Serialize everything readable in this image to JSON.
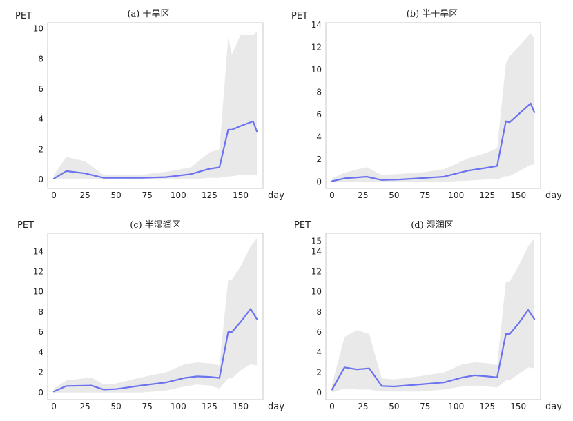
{
  "chart_data": [
    {
      "type": "line",
      "title": "(a) 干旱区",
      "ylabel": "PET",
      "xlabel": "day",
      "xlim": [
        -5,
        168
      ],
      "ylim": [
        -0.6,
        10.4
      ],
      "xticks": [
        "0",
        "25",
        "50",
        "75",
        "100",
        "125",
        "150"
      ],
      "yticks": [
        "0",
        "2",
        "4",
        "6",
        "8",
        "10"
      ],
      "colors": {
        "line": "#6b72f0",
        "band": "#e9e9e9"
      },
      "series": [
        {
          "x": [
            0,
            10,
            25,
            40,
            50,
            70,
            90,
            110,
            125,
            133,
            140,
            143,
            150,
            160,
            163
          ],
          "mean": [
            0.05,
            0.55,
            0.4,
            0.1,
            0.1,
            0.1,
            0.15,
            0.35,
            0.7,
            0.8,
            3.3,
            3.3,
            3.55,
            3.85,
            3.2
          ],
          "lower": [
            0,
            0,
            0,
            0,
            0,
            0,
            0,
            0,
            0.1,
            0.1,
            0.2,
            0.2,
            0.3,
            0.3,
            0.3
          ],
          "upper": [
            0.3,
            1.5,
            1.2,
            0.3,
            0.3,
            0.3,
            0.5,
            0.8,
            1.8,
            2.0,
            9.4,
            8.3,
            9.6,
            9.6,
            9.8
          ]
        }
      ]
    },
    {
      "type": "line",
      "title": "(b) 半干旱区",
      "ylabel": "PET",
      "xlabel": "day",
      "xlim": [
        -5,
        168
      ],
      "ylim": [
        -0.6,
        14.2
      ],
      "xticks": [
        "0",
        "25",
        "50",
        "75",
        "100",
        "125",
        "150"
      ],
      "yticks": [
        "0",
        "2",
        "4",
        "6",
        "8",
        "10",
        "12",
        "14"
      ],
      "colors": {
        "line": "#6b72f0",
        "band": "#e9e9e9"
      },
      "series": [
        {
          "x": [
            0,
            10,
            28,
            40,
            55,
            70,
            90,
            110,
            125,
            133,
            140,
            143,
            150,
            160,
            163
          ],
          "mean": [
            0.05,
            0.3,
            0.45,
            0.15,
            0.2,
            0.3,
            0.45,
            1.0,
            1.25,
            1.4,
            5.4,
            5.3,
            6.0,
            7.0,
            6.2
          ],
          "lower": [
            0,
            0,
            0,
            0,
            0,
            0,
            0,
            0.1,
            0.2,
            0.2,
            0.5,
            0.5,
            0.9,
            1.5,
            1.5
          ],
          "upper": [
            0.3,
            0.8,
            1.3,
            0.6,
            0.7,
            0.8,
            1.1,
            2.1,
            2.6,
            3.0,
            10.5,
            11.2,
            12.0,
            13.3,
            12.8
          ]
        }
      ]
    },
    {
      "type": "line",
      "title": "(c) 半湿润区",
      "ylabel": "PET",
      "xlabel": "day",
      "xlim": [
        -5,
        168
      ],
      "ylim": [
        -0.7,
        15.8
      ],
      "xticks": [
        "0",
        "25",
        "50",
        "75",
        "100",
        "125",
        "150"
      ],
      "yticks": [
        "0",
        "2",
        "4",
        "6",
        "8",
        "10",
        "12",
        "14"
      ],
      "colors": {
        "line": "#6b72f0",
        "band": "#e9e9e9"
      },
      "series": [
        {
          "x": [
            0,
            10,
            30,
            40,
            50,
            70,
            90,
            105,
            115,
            125,
            133,
            140,
            143,
            150,
            158,
            163
          ],
          "mean": [
            0.1,
            0.65,
            0.7,
            0.3,
            0.35,
            0.7,
            1.0,
            1.45,
            1.6,
            1.55,
            1.45,
            6.0,
            6.0,
            7.0,
            8.3,
            7.3
          ],
          "lower": [
            0,
            0,
            0,
            0,
            0,
            0,
            0.2,
            0.6,
            0.8,
            0.7,
            0.4,
            1.4,
            1.4,
            2.2,
            2.8,
            2.7
          ],
          "upper": [
            0.4,
            1.2,
            1.5,
            0.8,
            0.9,
            1.5,
            2.0,
            2.8,
            3.0,
            2.9,
            2.7,
            11.2,
            11.2,
            12.5,
            14.5,
            15.3
          ]
        }
      ]
    },
    {
      "type": "line",
      "title": "(d) 湿润区",
      "ylabel": "PET",
      "xlabel": "day",
      "xlim": [
        -5,
        168
      ],
      "ylim": [
        -0.7,
        15.8
      ],
      "xticks": [
        "0",
        "25",
        "50",
        "75",
        "100",
        "125",
        "150"
      ],
      "yticks": [
        "0",
        "2",
        "4",
        "6",
        "8",
        "10",
        "12",
        "14",
        "15"
      ],
      "colors": {
        "line": "#6b72f0",
        "band": "#e9e9e9"
      },
      "series": [
        {
          "x": [
            0,
            10,
            20,
            30,
            40,
            50,
            70,
            90,
            105,
            115,
            125,
            133,
            140,
            143,
            150,
            158,
            163
          ],
          "mean": [
            0.3,
            2.5,
            2.3,
            2.4,
            0.65,
            0.6,
            0.8,
            1.0,
            1.5,
            1.7,
            1.6,
            1.5,
            5.8,
            5.8,
            6.8,
            8.2,
            7.3
          ],
          "lower": [
            0,
            0.4,
            0.3,
            0.3,
            0.1,
            0.1,
            0.1,
            0.3,
            0.6,
            0.7,
            0.6,
            0.5,
            1.2,
            1.2,
            1.8,
            2.5,
            2.4
          ],
          "upper": [
            0.8,
            5.5,
            6.2,
            5.8,
            1.4,
            1.3,
            1.6,
            2.0,
            2.8,
            3.0,
            2.9,
            2.7,
            11.0,
            11.0,
            12.5,
            14.5,
            15.3
          ]
        }
      ]
    }
  ]
}
